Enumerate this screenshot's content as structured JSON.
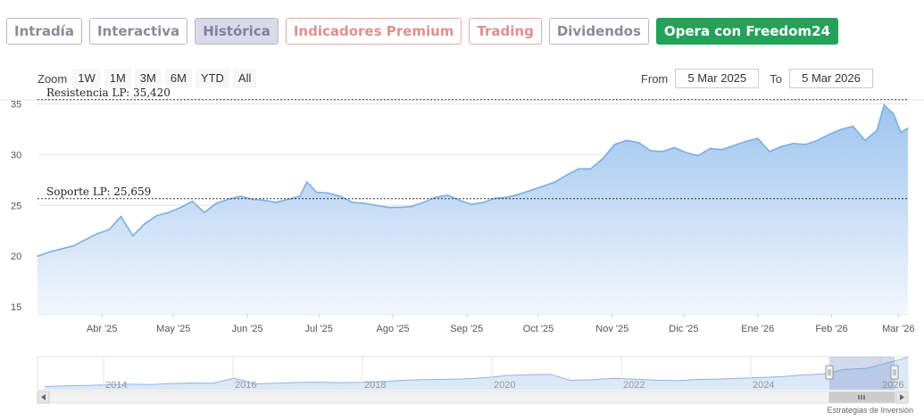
{
  "tabs": [
    {
      "label": "Intradía",
      "style": "normal"
    },
    {
      "label": "Interactiva",
      "style": "normal"
    },
    {
      "label": "Histórica",
      "style": "active"
    },
    {
      "label": "Indicadores Premium",
      "style": "premium"
    },
    {
      "label": "Trading",
      "style": "premium"
    },
    {
      "label": "Dividendos",
      "style": "normal"
    },
    {
      "label": "Opera con Freedom24",
      "style": "green"
    }
  ],
  "zoom": {
    "label": "Zoom",
    "options": [
      "1W",
      "1M",
      "3M",
      "6M",
      "YTD",
      "All"
    ]
  },
  "range": {
    "from_label": "From",
    "from_value": "5 Mar 2025",
    "to_label": "To",
    "to_value": "5 Mar 2026"
  },
  "footer": "Estrategias de Inversión",
  "colors": {
    "line": "#7aaee3",
    "fill_top": "#9ec4ee",
    "fill_bottom": "#f2f7fd",
    "dash": "#333333"
  },
  "chart_data": {
    "type": "area",
    "title": "",
    "xlabel": "",
    "ylabel": "",
    "ylim": [
      14.3,
      35.4
    ],
    "yticks": [
      15,
      20,
      25,
      30,
      35
    ],
    "xticks": [
      "Abr '25",
      "May '25",
      "Jun '25",
      "Jul '25",
      "Ago '25",
      "Sep '25",
      "Oct '25",
      "Nov '25",
      "Dic '25",
      "Ene '26",
      "Feb '26",
      "Mar '26"
    ],
    "x": [
      "2025-03-05",
      "2025-03-10",
      "2025-03-15",
      "2025-03-20",
      "2025-03-25",
      "2025-03-30",
      "2025-04-04",
      "2025-04-09",
      "2025-04-14",
      "2025-04-19",
      "2025-04-24",
      "2025-04-29",
      "2025-05-04",
      "2025-05-09",
      "2025-05-14",
      "2025-05-19",
      "2025-05-24",
      "2025-05-29",
      "2025-06-03",
      "2025-06-08",
      "2025-06-13",
      "2025-06-18",
      "2025-06-23",
      "2025-06-26",
      "2025-06-30",
      "2025-07-05",
      "2025-07-10",
      "2025-07-15",
      "2025-07-20",
      "2025-07-25",
      "2025-07-30",
      "2025-08-04",
      "2025-08-09",
      "2025-08-14",
      "2025-08-19",
      "2025-08-24",
      "2025-08-29",
      "2025-09-03",
      "2025-09-08",
      "2025-09-13",
      "2025-09-18",
      "2025-09-23",
      "2025-09-28",
      "2025-10-03",
      "2025-10-08",
      "2025-10-13",
      "2025-10-18",
      "2025-10-23",
      "2025-10-28",
      "2025-11-02",
      "2025-11-07",
      "2025-11-12",
      "2025-11-17",
      "2025-11-22",
      "2025-11-27",
      "2025-12-02",
      "2025-12-07",
      "2025-12-12",
      "2025-12-17",
      "2025-12-22",
      "2025-12-27",
      "2026-01-01",
      "2026-01-06",
      "2026-01-11",
      "2026-01-16",
      "2026-01-21",
      "2026-01-26",
      "2026-01-31",
      "2026-02-05",
      "2026-02-10",
      "2026-02-15",
      "2026-02-20",
      "2026-02-23",
      "2026-02-27",
      "2026-03-02",
      "2026-03-05"
    ],
    "series": [
      {
        "values": [
          20.0,
          20.4,
          20.7,
          21.0,
          21.6,
          22.2,
          22.6,
          23.9,
          22.0,
          23.2,
          24.0,
          24.3,
          24.8,
          25.4,
          24.3,
          25.2,
          25.6,
          25.9,
          25.6,
          25.5,
          25.3,
          25.6,
          25.9,
          27.3,
          26.3,
          26.2,
          25.9,
          25.3,
          25.2,
          25.0,
          24.8,
          24.8,
          24.9,
          25.3,
          25.8,
          26.0,
          25.5,
          25.1,
          25.3,
          25.7,
          25.8,
          26.1,
          26.5,
          26.9,
          27.3,
          28.0,
          28.6,
          28.6,
          29.6,
          31.0,
          31.4,
          31.2,
          30.4,
          30.3,
          30.7,
          30.2,
          29.9,
          30.6,
          30.5,
          30.9,
          31.3,
          31.6,
          30.3,
          30.8,
          31.1,
          31.0,
          31.4,
          32.0,
          32.5,
          32.8,
          31.4,
          32.4,
          34.9,
          34.0,
          32.2,
          32.6
        ]
      }
    ],
    "annotations": [
      {
        "label": "Resistencia LP: 35,420",
        "value": 35.42
      },
      {
        "label": "Soporte LP: 25,659",
        "value": 25.659
      }
    ],
    "navigator": {
      "xticks": [
        "2014",
        "2016",
        "2018",
        "2020",
        "2022",
        "2024",
        "2026"
      ],
      "values": [
        8.0,
        8.5,
        9.0,
        9.6,
        10.2,
        9.8,
        10.8,
        11.3,
        11.1,
        15.8,
        10.5,
        11.0,
        11.8,
        12.0,
        11.6,
        11.9,
        12.6,
        13.8,
        14.4,
        14.7,
        15.1,
        16.4,
        18.4,
        19.0,
        19.5,
        13.8,
        14.4,
        15.6,
        15.0,
        14.0,
        13.5,
        14.6,
        15.0,
        15.8,
        16.4,
        17.2,
        18.8,
        19.8,
        24.0,
        25.0,
        30.0,
        35.4
      ]
    }
  }
}
